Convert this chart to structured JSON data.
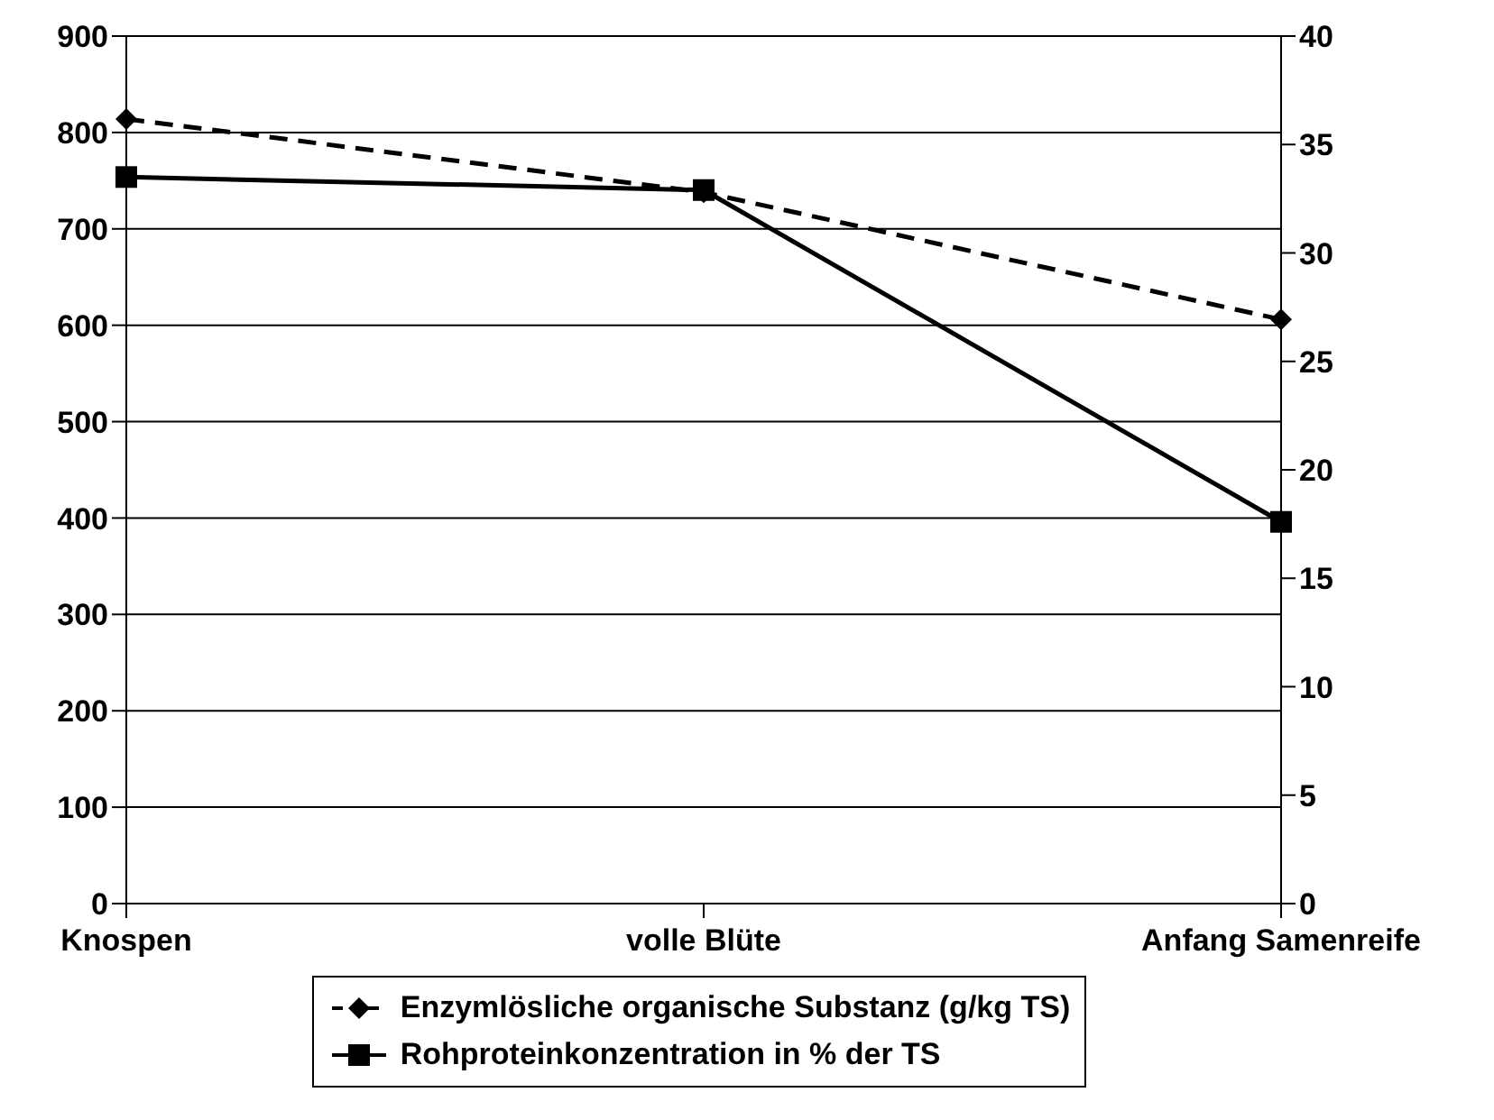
{
  "chart_data": {
    "type": "line",
    "categories": [
      "Knospen",
      "volle Blüte",
      "Anfang Samenreife"
    ],
    "series": [
      {
        "name": "Enzymlösliche organische Substanz (g/kg TS)",
        "color": "#000000",
        "values": [
          814,
          738,
          606
        ],
        "marker": "diamond",
        "line_style": "dashed"
      },
      {
        "name": "Rohproteinkonzentration in % der TS",
        "color": "#000000",
        "values": [
          33.5,
          32.9,
          17.6
        ],
        "marker": "square",
        "line_style": "solid",
        "axis": "y2"
      }
    ],
    "ylim": [
      0,
      900
    ],
    "yticks": [
      0,
      100,
      200,
      300,
      400,
      500,
      600,
      700,
      800,
      900
    ],
    "y2lim": [
      0,
      40
    ],
    "y2ticks": [
      0,
      5,
      10,
      15,
      20,
      25,
      30,
      35,
      40
    ],
    "grid": "y",
    "legend": "bottom"
  }
}
